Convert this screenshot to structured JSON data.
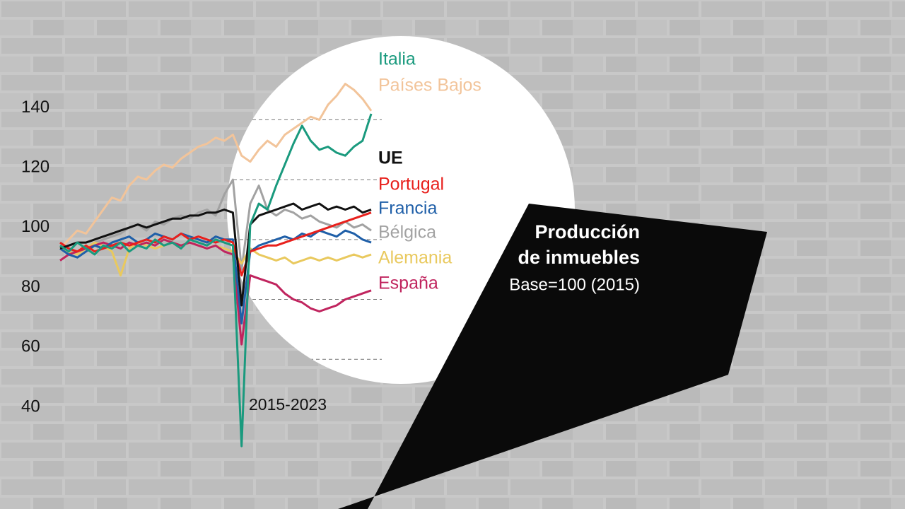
{
  "chart_data": {
    "type": "line",
    "title": "Producción de inmuebles",
    "subtitle": "Base=100 (2015)",
    "annotation": "2015-2023",
    "ylim": [
      10,
      180
    ],
    "yticks": [
      40,
      60,
      80,
      100,
      120,
      140
    ],
    "grid": true,
    "series": [
      {
        "name": "Italia",
        "color": "#1a9a7e",
        "values": [
          98,
          96,
          99,
          97,
          95,
          98,
          97,
          99,
          96,
          98,
          97,
          100,
          98,
          99,
          97,
          100,
          99,
          98,
          100,
          99,
          98,
          31,
          105,
          112,
          110,
          118,
          125,
          132,
          138,
          133,
          130,
          131,
          129,
          128,
          131,
          133,
          142
        ]
      },
      {
        "name": "Países Bajos",
        "color": "#f2c49a",
        "values": [
          97,
          100,
          103,
          102,
          106,
          110,
          114,
          113,
          118,
          121,
          120,
          123,
          125,
          124,
          127,
          129,
          131,
          132,
          134,
          133,
          135,
          128,
          126,
          130,
          133,
          131,
          135,
          137,
          139,
          141,
          140,
          145,
          148,
          152,
          150,
          147,
          143
        ]
      },
      {
        "name": "UE",
        "color": "#111111",
        "values": [
          97,
          98,
          99,
          99,
          100,
          101,
          102,
          103,
          104,
          105,
          104,
          105,
          106,
          107,
          107,
          108,
          108,
          109,
          109,
          110,
          109,
          78,
          105,
          108,
          109,
          110,
          111,
          112,
          110,
          111,
          112,
          110,
          111,
          110,
          111,
          109,
          110
        ]
      },
      {
        "name": "Portugal",
        "color": "#e8201c",
        "values": [
          99,
          97,
          96,
          98,
          96,
          97,
          98,
          99,
          98,
          99,
          100,
          99,
          101,
          100,
          102,
          100,
          101,
          100,
          99,
          100,
          99,
          88,
          96,
          97,
          98,
          98,
          99,
          100,
          101,
          102,
          103,
          104,
          105,
          106,
          107,
          108,
          109
        ]
      },
      {
        "name": "Francia",
        "color": "#1f5fa8",
        "values": [
          97,
          95,
          94,
          96,
          98,
          97,
          99,
          100,
          101,
          99,
          100,
          102,
          101,
          100,
          102,
          101,
          100,
          99,
          101,
          100,
          100,
          72,
          96,
          98,
          99,
          100,
          101,
          100,
          102,
          101,
          103,
          102,
          101,
          103,
          102,
          100,
          99
        ]
      },
      {
        "name": "Bélgica",
        "color": "#a2a2a2",
        "values": [
          98,
          97,
          95,
          97,
          99,
          100,
          101,
          102,
          104,
          105,
          103,
          106,
          105,
          107,
          108,
          107,
          109,
          110,
          108,
          115,
          120,
          90,
          112,
          118,
          110,
          108,
          110,
          109,
          107,
          108,
          106,
          105,
          104,
          106,
          104,
          105,
          103
        ]
      },
      {
        "name": "Alemania",
        "color": "#e9c95e",
        "values": [
          97,
          96,
          95,
          97,
          99,
          98,
          96,
          88,
          97,
          99,
          98,
          97,
          98,
          99,
          98,
          99,
          98,
          97,
          98,
          97,
          96,
          92,
          97,
          95,
          94,
          93,
          94,
          92,
          93,
          94,
          93,
          94,
          93,
          94,
          95,
          94,
          95
        ]
      },
      {
        "name": "España",
        "color": "#c0245e",
        "values": [
          93,
          95,
          96,
          97,
          98,
          99,
          98,
          97,
          99,
          98,
          99,
          98,
          100,
          99,
          98,
          99,
          98,
          97,
          98,
          96,
          95,
          65,
          88,
          87,
          86,
          85,
          82,
          80,
          79,
          77,
          76,
          77,
          78,
          80,
          81,
          82,
          83
        ]
      }
    ]
  }
}
